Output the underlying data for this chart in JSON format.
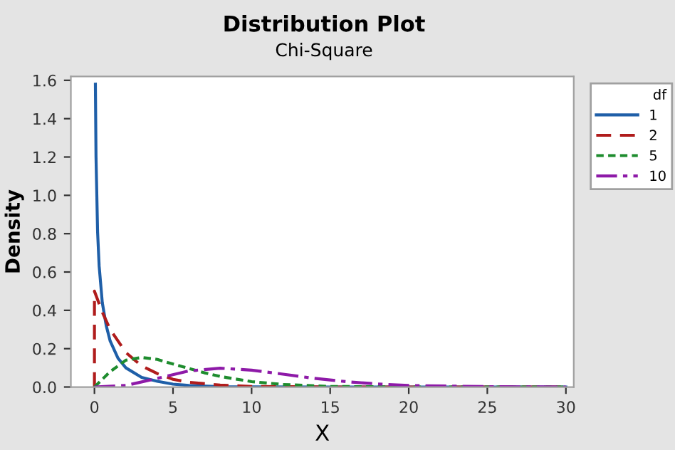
{
  "chart_data": {
    "type": "line",
    "title": "Distribution Plot",
    "subtitle": "Chi-Square",
    "xlabel": "X",
    "ylabel": "Density",
    "legend_title": "df",
    "legend": "right",
    "grid": false,
    "xlim": [
      -1.5,
      30.5
    ],
    "xticks": [
      0,
      5,
      10,
      15,
      20,
      25,
      30
    ],
    "ylim": [
      0,
      1.62
    ],
    "yticks": [
      {
        "value": 0,
        "label": "0.0"
      },
      {
        "value": 0.2,
        "label": "0.2"
      },
      {
        "value": 0.4,
        "label": "0.4"
      },
      {
        "value": 0.6,
        "label": "0.6"
      },
      {
        "value": 0.8,
        "label": "0.8"
      },
      {
        "value": 1.0,
        "label": "1.0"
      },
      {
        "value": 1.2,
        "label": "1.2"
      },
      {
        "value": 1.4,
        "label": "1.4"
      },
      {
        "value": 1.6,
        "label": "1.6"
      }
    ],
    "series": [
      {
        "name": "1",
        "color": "#1f5fa8",
        "line_style": "solid",
        "x": [
          0.06,
          0.1,
          0.2,
          0.3,
          0.5,
          0.75,
          1,
          1.5,
          2,
          3,
          4,
          5,
          6,
          8,
          10,
          15,
          30
        ],
        "values": [
          1.58,
          1.2,
          0.81,
          0.63,
          0.44,
          0.32,
          0.24,
          0.15,
          0.1,
          0.05,
          0.03,
          0.015,
          0.008,
          0.002,
          0.001,
          0,
          0
        ]
      },
      {
        "name": "2",
        "color": "#b01c1c",
        "line_style": "dashed",
        "x": [
          0,
          0,
          0.5,
          1,
          2,
          3,
          4,
          5,
          6,
          8,
          10,
          15,
          30
        ],
        "values": [
          0,
          0.5,
          0.39,
          0.3,
          0.18,
          0.11,
          0.07,
          0.04,
          0.025,
          0.01,
          0.003,
          0,
          0
        ]
      },
      {
        "name": "5",
        "color": "#1e8c2e",
        "line_style": "dotted",
        "x": [
          0,
          0.5,
          1,
          2,
          3,
          4,
          5,
          6,
          7,
          8,
          10,
          12,
          15,
          20,
          30
        ],
        "values": [
          0,
          0.04,
          0.08,
          0.14,
          0.154,
          0.144,
          0.12,
          0.097,
          0.074,
          0.055,
          0.028,
          0.013,
          0.003,
          0,
          0
        ]
      },
      {
        "name": "10",
        "color": "#8e1aa8",
        "line_style": "dashdot",
        "x": [
          0,
          2,
          4,
          6,
          8,
          10,
          12,
          14,
          16,
          18,
          20,
          25,
          30
        ],
        "values": [
          0,
          0.008,
          0.045,
          0.084,
          0.098,
          0.088,
          0.067,
          0.045,
          0.028,
          0.016,
          0.008,
          0.002,
          0
        ]
      }
    ]
  }
}
